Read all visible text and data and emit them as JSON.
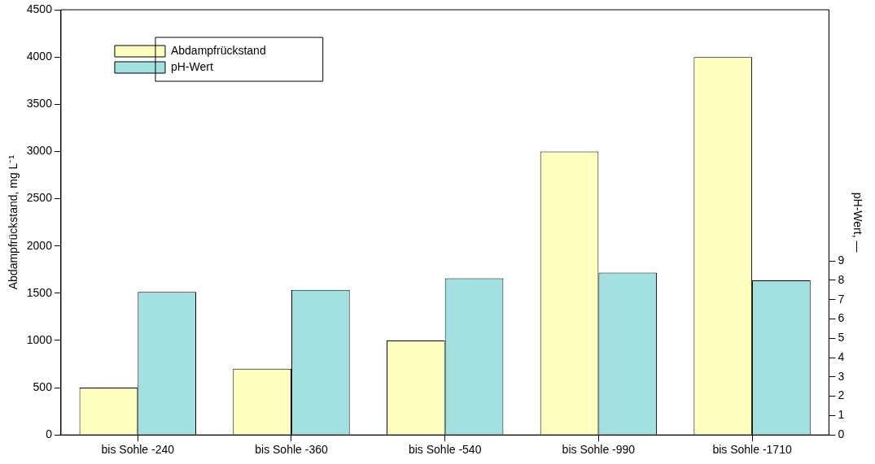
{
  "chart_data": {
    "type": "bar",
    "ylabel": "Abdampfrückstand, mg L⁻¹",
    "y2label": "pH-Wert, —",
    "categories": [
      "bis Sohle -240",
      "bis Sohle -360",
      "bis Sohle -540",
      "bis Sohle -990",
      "bis Sohle -1710"
    ],
    "series": [
      {
        "name": "Abdampfrückstand",
        "color": "#ffffc0",
        "values": [
          500,
          700,
          1000,
          3000,
          4000
        ]
      },
      {
        "name": "pH-Wert",
        "color": "#a3e0e0",
        "axis": "y2",
        "values": [
          7.4,
          7.5,
          8.1,
          8.4,
          8.0
        ]
      }
    ],
    "ylim": [
      0,
      4500
    ],
    "yticks": [
      0,
      500,
      1000,
      1500,
      2000,
      2500,
      3000,
      3500,
      4000,
      4500
    ],
    "y2lim": [
      0,
      22
    ],
    "y2ticks": [
      0,
      1,
      2,
      3,
      4,
      5,
      6,
      7,
      8,
      9
    ],
    "grid": false,
    "legend": "top left"
  }
}
